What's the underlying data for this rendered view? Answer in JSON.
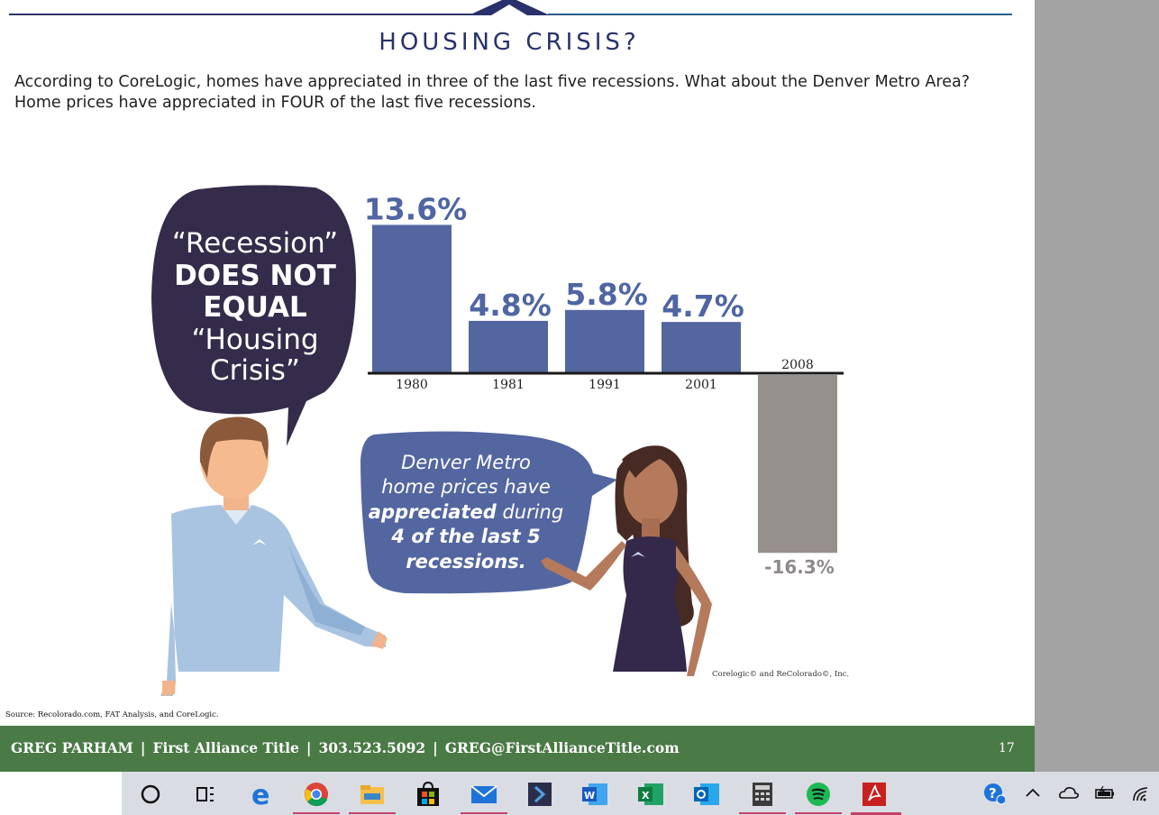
{
  "slide": {
    "title": "HOUSING CRISIS?",
    "intro": "According to CoreLogic, homes have appreciated in three of the last five recessions. What about the Denver Metro Area? Home prices have appreciated in FOUR of the last five recessions.",
    "source": "Source: Recolorado.com, FAT Analysis, and CoreLogic.",
    "page_number": "17"
  },
  "speech_left": {
    "line1": "“Recession”",
    "line2": "DOES NOT",
    "line3": "EQUAL",
    "line4": "“Housing",
    "line5": "Crisis”"
  },
  "speech_right": {
    "line1": "Denver Metro",
    "line2": "home prices have",
    "line3_bold": "appreciated",
    "line3_rest": " during",
    "line4": "4 of the last 5",
    "line5": "recessions."
  },
  "chart_data": {
    "type": "bar",
    "categories": [
      "1980",
      "1981",
      "1991",
      "2001",
      "2008"
    ],
    "values": [
      13.6,
      4.8,
      5.8,
      4.7,
      -16.3
    ],
    "data_labels": [
      "13.6%",
      "4.8%",
      "5.8%",
      "4.7%",
      "-16.3%"
    ],
    "ylabel": "",
    "xlabel": "",
    "ylim": [
      -16.3,
      13.6
    ],
    "colors": {
      "positive": "#5366a0",
      "negative": "#958f8e"
    },
    "credit": "Corelogic© and ReColorado©, Inc."
  },
  "footer": {
    "name": "GREG PARHAM",
    "company": "First Alliance Title",
    "phone": "303.523.5092",
    "email": "GREG@FirstAllianceTitle.com",
    "separator": "|",
    "color": "#4a7a45"
  },
  "taskbar": {
    "apps": [
      {
        "icon": "cortana-icon"
      },
      {
        "icon": "task-view-icon"
      },
      {
        "icon": "edge-icon"
      },
      {
        "icon": "chrome-icon"
      },
      {
        "icon": "file-explorer-icon"
      },
      {
        "icon": "store-icon"
      },
      {
        "icon": "mail-icon"
      },
      {
        "icon": "powershell-icon"
      },
      {
        "icon": "word-icon"
      },
      {
        "icon": "excel-icon"
      },
      {
        "icon": "outlook-icon"
      },
      {
        "icon": "calculator-icon"
      },
      {
        "icon": "spotify-icon"
      },
      {
        "icon": "acrobat-icon"
      }
    ],
    "tray": [
      {
        "icon": "help-icon"
      },
      {
        "icon": "chevron-up-icon"
      },
      {
        "icon": "onedrive-icon"
      },
      {
        "icon": "battery-icon"
      },
      {
        "icon": "wifi-icon"
      }
    ]
  }
}
